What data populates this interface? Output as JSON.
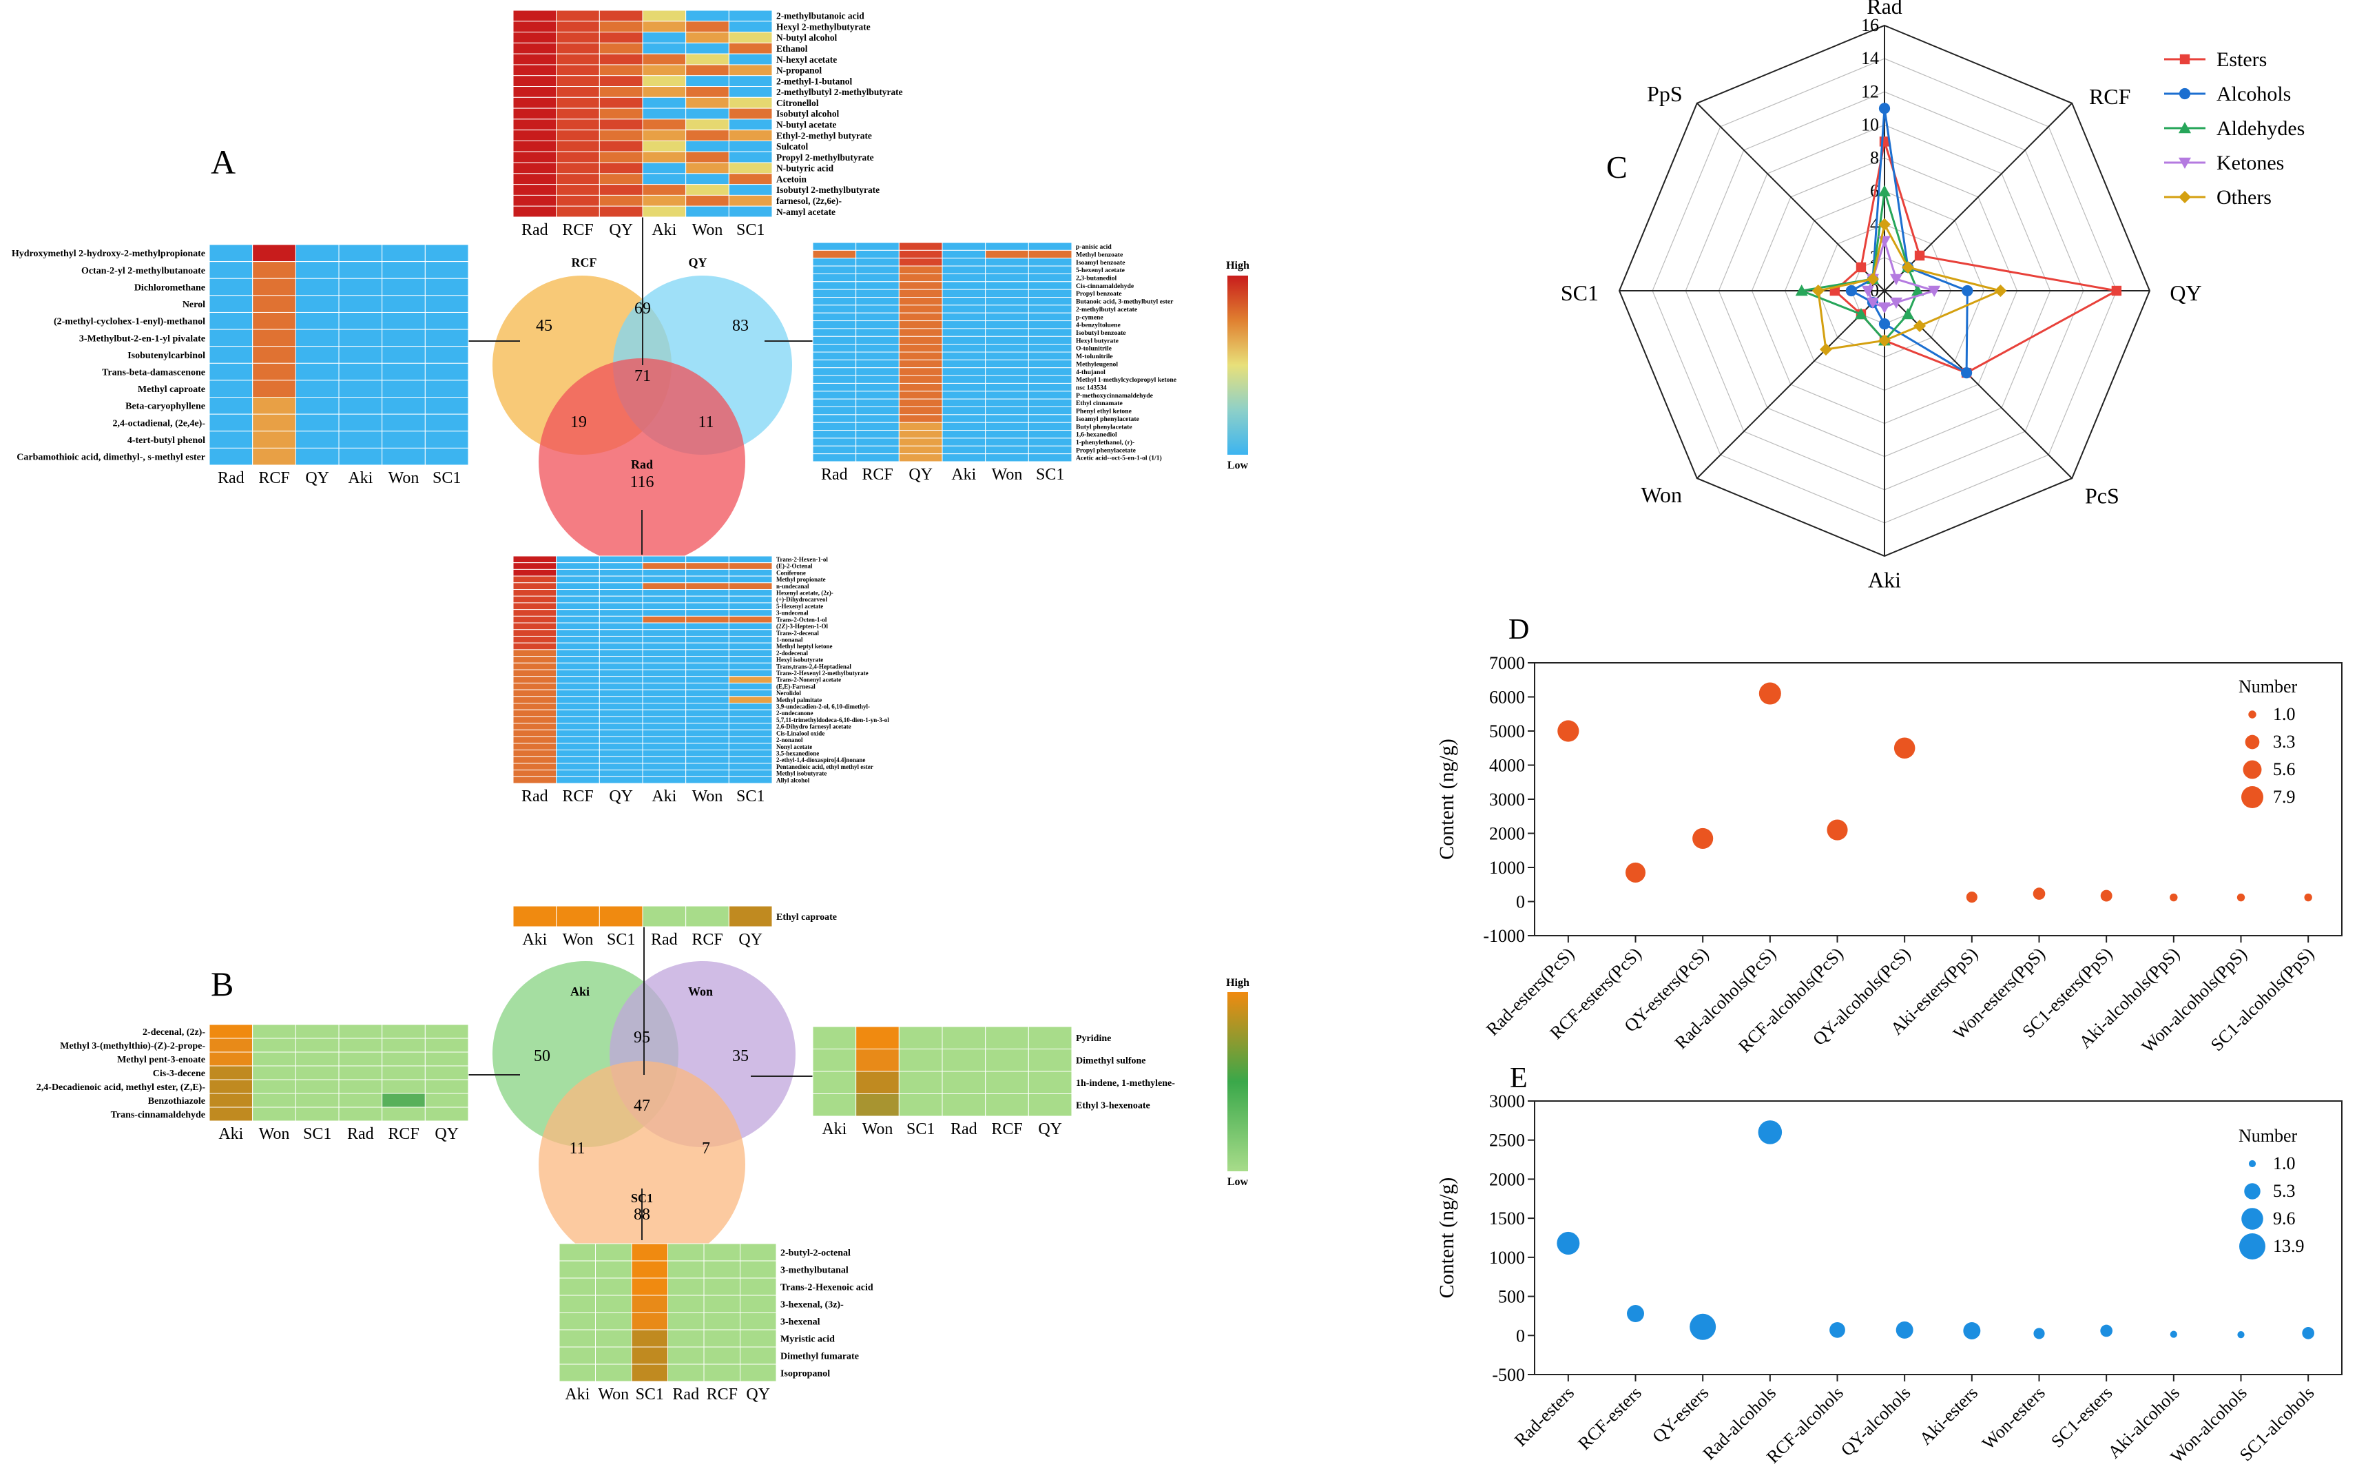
{
  "panels": {
    "A": "A",
    "B": "B",
    "C": "C",
    "D": "D",
    "E": "E"
  },
  "colors": {
    "hm_high": "#c81c1c",
    "hm_low": "#3cb4f0",
    "hm2_high": "#f08a10",
    "hm2_low": "#a8dc8a",
    "venn_rcf": "#f5b74a",
    "venn_qy": "#7fd6f5",
    "venn_rad": "#f0515a",
    "venn_aki": "#8ed68a",
    "venn_won": "#c0a6dc",
    "venn_sc1": "#fbb880",
    "bubbleD": "#ea5520",
    "bubbleE": "#1c8ee0"
  },
  "samples": [
    "Rad",
    "RCF",
    "QY",
    "Aki",
    "Won",
    "SC1"
  ],
  "vennA": {
    "labels": {
      "rcf": "RCF",
      "qy": "QY",
      "rad": "Rad"
    },
    "counts": {
      "rcf_only": "45",
      "qy_only": "83",
      "rcf_qy": "69",
      "all": "71",
      "rcf_rad": "19",
      "qy_rad": "11",
      "rad_only": "116"
    }
  },
  "vennB": {
    "labels": {
      "aki": "Aki",
      "won": "Won",
      "sc1": "SC1"
    },
    "counts": {
      "aki_only": "50",
      "won_only": "35",
      "aki_won": "95",
      "all": "47",
      "aki_sc1": "11",
      "won_sc1": "7",
      "sc1_only": "88"
    }
  },
  "legendA": {
    "high": "High",
    "low": "Low"
  },
  "legendB": {
    "high": "High",
    "low": "Low"
  },
  "hmA_top": {
    "cols": [
      "Rad",
      "RCF",
      "QY",
      "Aki",
      "Won",
      "SC1"
    ],
    "rows": [
      "2-methylbutanoic acid",
      "Hexyl 2-methylbutyrate",
      "N-butyl alcohol",
      "Ethanol",
      "N-hexyl acetate",
      "N-propanol",
      "2-methyl-1-butanol",
      "2-methylbutyl 2-methylbutyrate",
      "Citronellol",
      "Isobutyl alcohol",
      "N-butyl acetate",
      "Ethyl-2-methyl butyrate",
      "Sulcatol",
      "Propyl 2-methylbutyrate",
      "N-butyric acid",
      "Acetoin",
      "Isobutyl 2-methylbutyrate",
      "farnesol, (2z,6e)-",
      "N-amyl acetate"
    ]
  },
  "hmA_left": {
    "cols": [
      "Rad",
      "RCF",
      "QY",
      "Aki",
      "Won",
      "SC1"
    ],
    "rows": [
      "Hydroxymethyl 2-hydroxy-2-methylpropionate",
      "Octan-2-yl 2-methylbutanoate",
      "Dichloromethane",
      "Nerol",
      "(2-methyl-cyclohex-1-enyl)-methanol",
      "3-Methylbut-2-en-1-yl pivalate",
      "Isobutenylcarbinol",
      "Trans-beta-damascenone",
      "Methyl caproate",
      "Beta-caryophyllene",
      "2,4-octadienal, (2e,4e)-",
      "4-tert-butyl phenol",
      "Carbamothioic acid, dimethyl-, s-methyl ester"
    ]
  },
  "hmA_right": {
    "cols": [
      "Rad",
      "RCF",
      "QY",
      "Aki",
      "Won",
      "SC1"
    ],
    "rows": [
      "p-anisic acid",
      "Methyl benzoate",
      "Isoamyl benzoate",
      "5-hexenyl acetate",
      "2,3-butanediol",
      "Cis-cinnamaldehyde",
      "Propyl benzoate",
      "Butanoic acid, 3-methylbutyl ester",
      "2-methylbutyl acetate",
      "p-cymene",
      "4-benzyltoluene",
      "Isobutyl benzoate",
      "Hexyl butyrate",
      "O-tolunitrile",
      "M-tolunitrile",
      "Methyleugenol",
      "4-thujanol",
      "Methyl 1-methylcyclopropyl ketone",
      "nsc 143534",
      "P-methoxycinnamaldehyde",
      "Ethyl cinnamate",
      "Phenyl ethyl ketone",
      "Isoamyl phenylacetate",
      "Butyl phenylacetate",
      "1,6-hexanediol",
      "1-phenylethanol, (r)-",
      "Propyl phenylacetate",
      "Acetic acid--oct-5-en-1-ol (1/1)"
    ]
  },
  "hmA_bottom": {
    "cols": [
      "Rad",
      "RCF",
      "QY",
      "Aki",
      "Won",
      "SC1"
    ],
    "rows": [
      "Trans-2-Hexen-1-ol",
      "(E)-2-Octenal",
      "Coniferone",
      "Methyl propionate",
      "n-undecanal",
      "Hexenyl acetate, (2z)-",
      "(+)-Dihydrocarveol",
      "5-Hexenyl acetate",
      "3-undecenal",
      "Trans-2-Octen-1-ol",
      "(2Z)-3-Hepten-1-Ol",
      "Trans-2-decenal",
      "1-nonanal",
      "Methyl heptyl ketone",
      "2-dodecenal",
      "Hexyl isobutyrate",
      "Trans,trans-2,4-Heptadienal",
      "Trans-2-Hexenyl 2-methylbutyrate",
      "Trans-2-Nonenyl acetate",
      "(E,E)-Farnesal",
      "Nerolidol",
      "Methyl palmitate",
      "3,9-undecadien-2-ol, 6,10-dimethyl-",
      "2-undecanone",
      "5,7,11-trimethyldodeca-6,10-dien-1-yn-3-ol",
      "2,6-Dihydro farnesyl acetate",
      "Cis-Linalool oxide",
      "2-nonanol",
      "Nonyl acetate",
      "3,5-hexanedione",
      "2-ethyl-1,4-dioxaspiro[4.4]nonane",
      "Pentanedioic acid, ethyl methyl ester",
      "Methyl isobutyrate",
      "Allyl alcohol"
    ]
  },
  "hmB_top": {
    "cols": [
      "Aki",
      "Won",
      "SC1",
      "Rad",
      "RCF",
      "QY"
    ],
    "rows": [
      "Ethyl caproate"
    ]
  },
  "hmB_left": {
    "cols": [
      "Aki",
      "Won",
      "SC1",
      "Rad",
      "RCF",
      "QY"
    ],
    "rows": [
      "2-decenal, (2z)-",
      "Methyl 3-(methylthio)-(Z)-2-prope-",
      "Methyl pent-3-enoate",
      "Cis-3-decene",
      "2,4-Decadienoic acid, methyl ester, (Z,E)-",
      "Benzothiazole",
      "Trans-cinnamaldehyde"
    ]
  },
  "hmB_right": {
    "cols": [
      "Aki",
      "Won",
      "SC1",
      "Rad",
      "RCF",
      "QY"
    ],
    "rows": [
      "Pyridine",
      "Dimethyl sulfone",
      "1h-indene, 1-methylene-",
      "Ethyl 3-hexenoate"
    ]
  },
  "hmB_bottom": {
    "cols": [
      "Aki",
      "Won",
      "SC1",
      "Rad",
      "RCF",
      "QY"
    ],
    "rows": [
      "2-butyl-2-octenal",
      "3-methylbutanal",
      "Trans-2-Hexenoic acid",
      "3-hexenal, (3z)-",
      "3-hexenal",
      "Myristic acid",
      "Dimethyl fumarate",
      "Isopropanol"
    ]
  },
  "chart_data": [
    {
      "id": "C",
      "type": "radar",
      "axes": [
        "Rad",
        "RCF",
        "QY",
        "PcS",
        "Aki",
        "Won",
        "SC1",
        "PpS"
      ],
      "rlim": [
        0,
        16
      ],
      "rticks": [
        "0",
        "2",
        "4",
        "6",
        "8",
        "10",
        "12",
        "14",
        "16"
      ],
      "series": [
        {
          "name": "Esters",
          "color": "#e8413a",
          "marker": "square",
          "values": [
            9,
            3,
            14,
            7,
            3,
            2,
            3,
            2
          ]
        },
        {
          "name": "Alcohols",
          "color": "#1c6fd0",
          "marker": "circle",
          "values": [
            11,
            2,
            5,
            7,
            2,
            1,
            2,
            1
          ]
        },
        {
          "name": "Aldehydes",
          "color": "#27a65a",
          "marker": "triangle-up",
          "values": [
            6,
            2,
            2,
            2,
            3,
            2,
            5,
            1
          ]
        },
        {
          "name": "Ketones",
          "color": "#b47ae0",
          "marker": "triangle-down",
          "values": [
            3,
            1,
            3,
            1,
            1,
            1,
            1,
            1
          ]
        },
        {
          "name": "Others",
          "color": "#d4a010",
          "marker": "diamond",
          "values": [
            4,
            2,
            7,
            3,
            3,
            5,
            4,
            1
          ]
        }
      ]
    },
    {
      "id": "D",
      "type": "scatter",
      "ylabel": "Content (ng/g)",
      "ylim": [
        -1000,
        7000
      ],
      "yticks": [
        "-1000",
        "0",
        "1000",
        "2000",
        "3000",
        "4000",
        "5000",
        "6000",
        "7000"
      ],
      "categories": [
        "Rad-esters(PcS)",
        "RCF-esters(PcS)",
        "QY-esters(PcS)",
        "Rad-alcohols(PcS)",
        "RCF-alcohols(PcS)",
        "QY-alcohols(PcS)",
        "Aki-esters(PpS)",
        "Won-esters(PpS)",
        "SC1-esters(PpS)",
        "Aki-alcohols(PpS)",
        "Won-alcohols(PpS)",
        "SC1-alcohols(PpS)"
      ],
      "values": [
        5000,
        850,
        1850,
        6100,
        2100,
        4500,
        130,
        230,
        170,
        120,
        120,
        120
      ],
      "sizes": [
        7.5,
        6.5,
        7.0,
        7.9,
        7.0,
        7.2,
        2.0,
        2.4,
        2.2,
        1.0,
        1.0,
        1.0
      ],
      "legend_title": "Number",
      "legend_values": [
        "1.0",
        "3.3",
        "5.6",
        "7.9"
      ]
    },
    {
      "id": "E",
      "type": "scatter",
      "ylabel": "Content (ng/g)",
      "ylim": [
        -500,
        3000
      ],
      "yticks": [
        "-500",
        "0",
        "500",
        "1000",
        "1500",
        "2000",
        "2500",
        "3000"
      ],
      "categories": [
        "Rad-esters",
        "RCF-esters",
        "QY-esters",
        "Rad-alcohols",
        "RCF-alcohols",
        "QY-alcohols",
        "Aki-esters",
        "Won-esters",
        "SC1-esters",
        "Aki-alcohols",
        "Won-alcohols",
        "SC1-alcohols"
      ],
      "values": [
        1180,
        280,
        110,
        2600,
        70,
        70,
        60,
        25,
        60,
        15,
        10,
        30
      ],
      "sizes": [
        10.5,
        6.0,
        13.9,
        11.5,
        5.0,
        6.0,
        6.0,
        2.5,
        3.0,
        1.0,
        1.0,
        3.0
      ],
      "legend_title": "Number",
      "legend_values": [
        "1.0",
        "5.3",
        "9.6",
        "13.9"
      ]
    }
  ]
}
